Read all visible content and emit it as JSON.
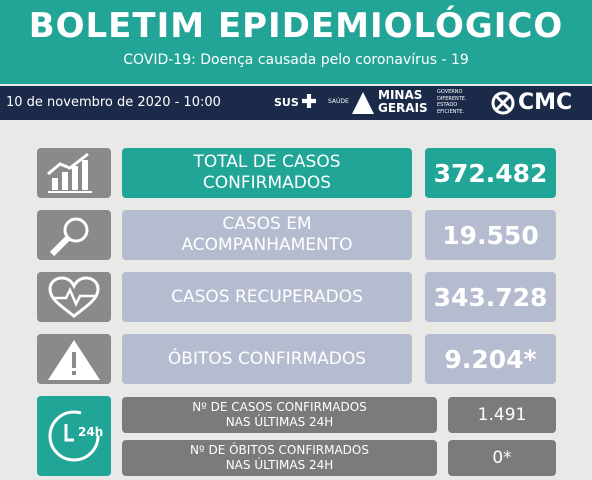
{
  "header": {
    "title": "BOLETIM EPIDEMIOLÓGICO",
    "subtitle": "COVID-19: Doença causada pelo coronavírus - 19"
  },
  "bar": {
    "date": "10 de novembro de 2020 - 10:00",
    "logos": {
      "sus": "SUS",
      "saude": "SAÚDE",
      "minas": [
        "MINAS",
        "GERAIS"
      ],
      "governo": [
        "GOVERNO",
        "DIFERENTE.",
        "ESTADO",
        "EFICIENTE."
      ],
      "cmc": "CMC"
    }
  },
  "rows": [
    {
      "label": [
        "TOTAL DE CASOS",
        "CONFIRMADOS"
      ],
      "value": "372.482"
    },
    {
      "label": [
        "CASOS EM",
        "ACOMPANHAMENTO"
      ],
      "value": "19.550"
    },
    {
      "label": [
        "CASOS RECUPERADOS"
      ],
      "value": "343.728"
    },
    {
      "label": [
        "ÓBITOS CONFIRMADOS"
      ],
      "value": "9.204*"
    }
  ],
  "daily": [
    {
      "label": [
        "Nº DE CASOS  CONFIRMADOS",
        "NAS ÚLTIMAS 24H"
      ],
      "value": "1.491"
    },
    {
      "label": [
        "Nº DE ÓBITOS  CONFIRMADOS",
        "NAS ÚLTIMAS 24H"
      ],
      "value": "0*"
    }
  ]
}
